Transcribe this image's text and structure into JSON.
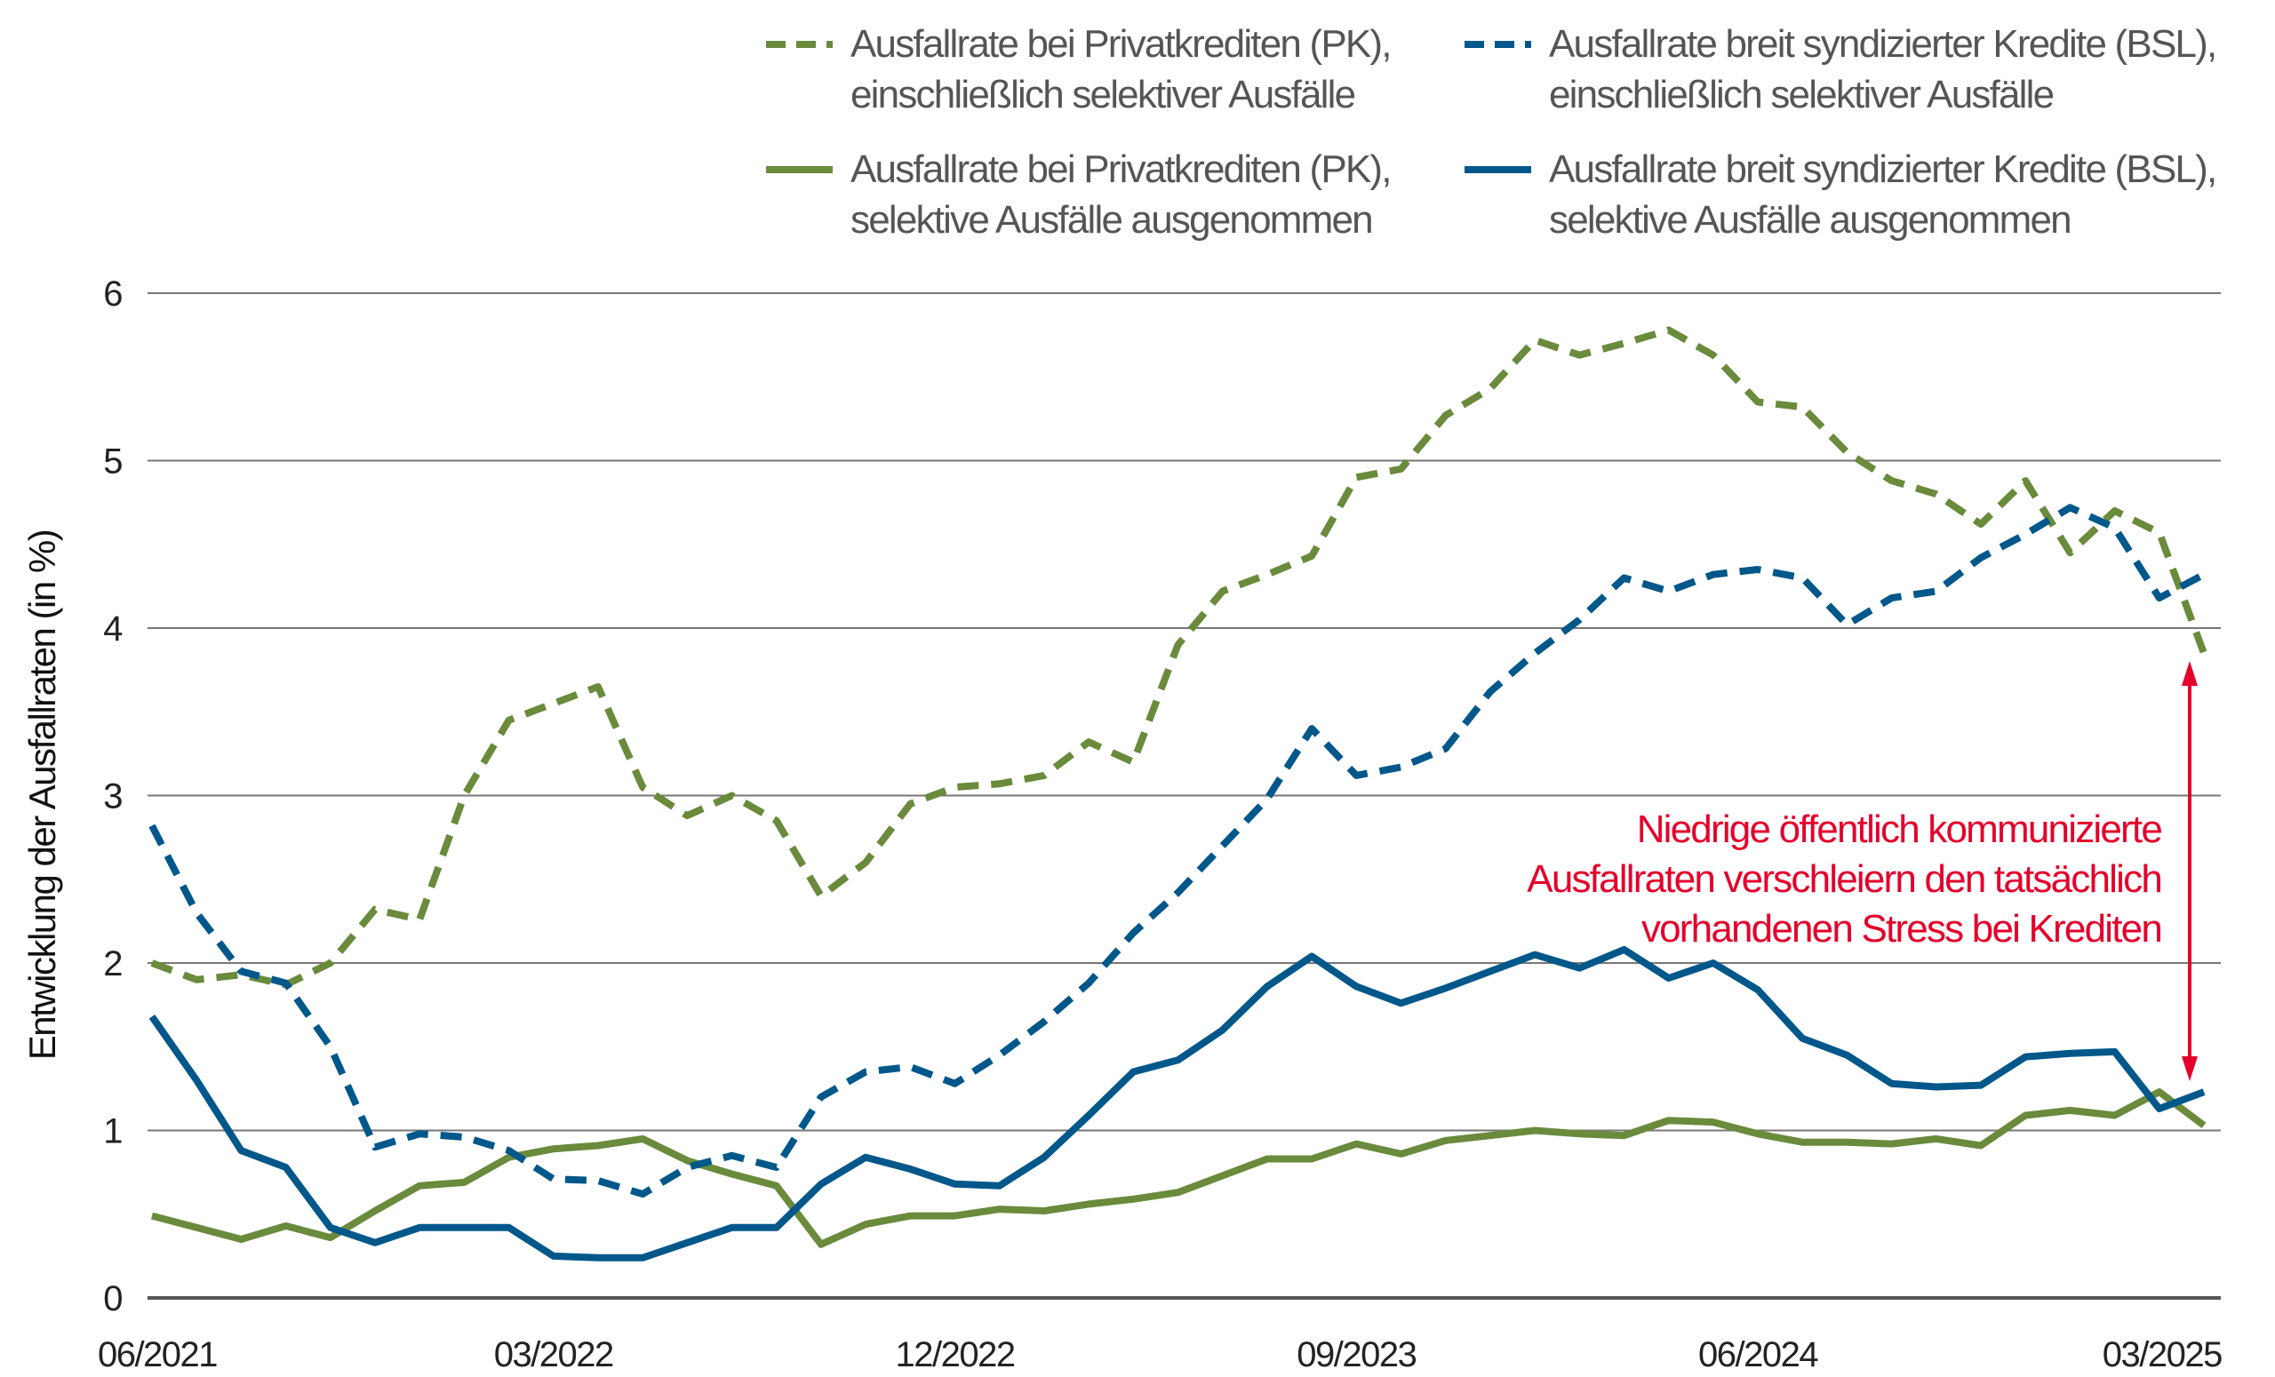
{
  "chart_data": {
    "type": "line",
    "title": "",
    "xlabel": "",
    "ylabel": "Entwicklung der Ausfallraten (in %)",
    "ylim": [
      0,
      6
    ],
    "yticks": [
      "0",
      "1",
      "2",
      "3",
      "4",
      "5",
      "6"
    ],
    "xtick_labels": [
      "06/2021",
      "03/2022",
      "12/2022",
      "09/2023",
      "06/2024",
      "03/2025"
    ],
    "grid": "horizontal",
    "legend_position": "top",
    "x": [
      "06/2021",
      "07/2021",
      "08/2021",
      "09/2021",
      "10/2021",
      "11/2021",
      "12/2021",
      "01/2022",
      "02/2022",
      "03/2022",
      "04/2022",
      "05/2022",
      "06/2022",
      "07/2022",
      "08/2022",
      "09/2022",
      "10/2022",
      "11/2022",
      "12/2022",
      "01/2023",
      "02/2023",
      "03/2023",
      "04/2023",
      "05/2023",
      "06/2023",
      "07/2023",
      "08/2023",
      "09/2023",
      "10/2023",
      "11/2023",
      "12/2023",
      "01/2024",
      "02/2024",
      "03/2024",
      "04/2024",
      "05/2024",
      "06/2024",
      "07/2024",
      "08/2024",
      "09/2024",
      "10/2024",
      "11/2024",
      "12/2024",
      "01/2025",
      "02/2025",
      "03/2025",
      "04/2025"
    ],
    "series": [
      {
        "name_line1": "Ausfallrate bei Privatkrediten (PK),",
        "name_line2": "einschließlich selektiver Ausfälle",
        "color": "#6a8a3c",
        "style": "dashed",
        "values": [
          2.0,
          1.9,
          1.93,
          1.87,
          2.0,
          2.32,
          2.26,
          3.0,
          3.45,
          3.55,
          3.65,
          3.05,
          2.88,
          3.0,
          2.85,
          2.4,
          2.6,
          2.95,
          3.05,
          3.07,
          3.12,
          3.32,
          3.2,
          3.9,
          4.22,
          4.32,
          4.43,
          4.9,
          4.95,
          5.27,
          5.43,
          5.72,
          5.63,
          5.7,
          5.78,
          5.63,
          5.35,
          5.32,
          5.05,
          4.88,
          4.8,
          4.62,
          4.88,
          4.45,
          4.7,
          4.57,
          3.85
        ]
      },
      {
        "name_line1": "Ausfallrate breit syndizierter Kredite (BSL),",
        "name_line2": "einschließlich selektiver Ausfälle",
        "color": "#00578a",
        "style": "dashed",
        "values": [
          2.82,
          2.3,
          1.95,
          1.88,
          1.5,
          0.9,
          0.98,
          0.96,
          0.88,
          0.71,
          0.7,
          0.62,
          0.78,
          0.85,
          0.78,
          1.2,
          1.35,
          1.38,
          1.28,
          1.45,
          1.65,
          1.88,
          2.18,
          2.42,
          2.7,
          2.98,
          3.4,
          3.12,
          3.17,
          3.28,
          3.62,
          3.85,
          4.05,
          4.3,
          4.22,
          4.32,
          4.35,
          4.3,
          4.02,
          4.18,
          4.22,
          4.42,
          4.56,
          4.72,
          4.6,
          4.18,
          4.32
        ]
      },
      {
        "name_line1": "Ausfallrate bei Privatkrediten (PK),",
        "name_line2": "selektive Ausfälle ausgenommen",
        "color": "#6a8a3c",
        "style": "solid",
        "values": [
          0.49,
          0.42,
          0.35,
          0.43,
          0.36,
          0.52,
          0.67,
          0.69,
          0.84,
          0.89,
          0.91,
          0.95,
          0.82,
          0.74,
          0.67,
          0.32,
          0.44,
          0.49,
          0.49,
          0.53,
          0.52,
          0.56,
          0.59,
          0.63,
          0.73,
          0.83,
          0.83,
          0.92,
          0.86,
          0.94,
          0.97,
          1.0,
          0.98,
          0.97,
          1.06,
          1.05,
          0.98,
          0.93,
          0.93,
          0.92,
          0.95,
          0.91,
          1.09,
          1.12,
          1.09,
          1.23,
          1.03
        ]
      },
      {
        "name_line1": "Ausfallrate breit syndizierter Kredite (BSL),",
        "name_line2": "selektive Ausfälle ausgenommen",
        "color": "#00578a",
        "style": "solid",
        "values": [
          1.68,
          1.3,
          0.88,
          0.78,
          0.42,
          0.33,
          0.42,
          0.42,
          0.42,
          0.25,
          0.24,
          0.24,
          0.33,
          0.42,
          0.42,
          0.68,
          0.84,
          0.77,
          0.68,
          0.67,
          0.84,
          1.09,
          1.35,
          1.42,
          1.6,
          1.86,
          2.04,
          1.86,
          1.76,
          1.85,
          1.95,
          2.05,
          1.97,
          2.08,
          1.91,
          2.0,
          1.84,
          1.55,
          1.45,
          1.28,
          1.26,
          1.27,
          1.44,
          1.46,
          1.47,
          1.13,
          1.23
        ]
      }
    ],
    "annotation": {
      "lines": [
        "Niedrige öffentlich kommunizierte",
        "Ausfallraten verschleiern den tatsächlich",
        "vorhandenen Stress bei Krediten"
      ],
      "color": "#e4002b"
    }
  }
}
